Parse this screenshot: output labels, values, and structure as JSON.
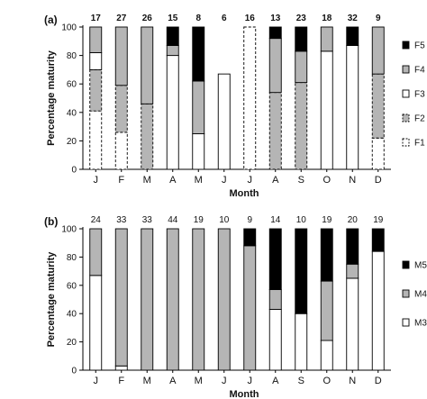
{
  "chart_data": [
    {
      "panel_label": "(a)",
      "type": "bar",
      "stacked": true,
      "categories": [
        "J",
        "F",
        "M",
        "A",
        "M",
        "J",
        "J",
        "A",
        "S",
        "O",
        "N",
        "D"
      ],
      "counts": [
        "17",
        "27",
        "26",
        "15",
        "8",
        "6",
        "16",
        "13",
        "23",
        "18",
        "32",
        "9"
      ],
      "ylabel": "Percentage maturity",
      "xlabel": "Month",
      "ylim": [
        0,
        100
      ],
      "yticks": [
        0,
        20,
        40,
        60,
        80,
        100
      ],
      "series": [
        {
          "name": "F1",
          "fill": "#ffffff",
          "dashed": true,
          "values": [
            41,
            26,
            0,
            0,
            0,
            0,
            100,
            0,
            0,
            0,
            0,
            22
          ]
        },
        {
          "name": "F2",
          "fill": "#b5b5b5",
          "dashed": true,
          "values": [
            29,
            33,
            46,
            0,
            0,
            0,
            0,
            54,
            61,
            0,
            0,
            45
          ]
        },
        {
          "name": "F3",
          "fill": "#ffffff",
          "dashed": false,
          "values": [
            12,
            0,
            0,
            80,
            25,
            67,
            0,
            0,
            0,
            83,
            87,
            0
          ]
        },
        {
          "name": "F4",
          "fill": "#b5b5b5",
          "dashed": false,
          "values": [
            18,
            41,
            54,
            7,
            37,
            0,
            0,
            38,
            22,
            17,
            0,
            33
          ]
        },
        {
          "name": "F5",
          "fill": "#000000",
          "dashed": false,
          "values": [
            0,
            0,
            0,
            13,
            38,
            0,
            0,
            8,
            17,
            0,
            13,
            0
          ]
        }
      ],
      "legend_position": "right"
    },
    {
      "panel_label": "(b)",
      "type": "bar",
      "stacked": true,
      "categories": [
        "J",
        "F",
        "M",
        "A",
        "M",
        "J",
        "J",
        "A",
        "S",
        "O",
        "N",
        "D"
      ],
      "counts": [
        "24",
        "33",
        "33",
        "44",
        "19",
        "10",
        "9",
        "14",
        "10",
        "19",
        "20",
        "19"
      ],
      "ylabel": "Percentage maturity",
      "xlabel": "Month",
      "ylim": [
        0,
        100
      ],
      "yticks": [
        0,
        20,
        40,
        60,
        80,
        100
      ],
      "series": [
        {
          "name": "M3",
          "fill": "#ffffff",
          "dashed": false,
          "values": [
            67,
            3,
            0,
            0,
            0,
            0,
            0,
            43,
            40,
            21,
            65,
            84
          ]
        },
        {
          "name": "M4",
          "fill": "#b5b5b5",
          "dashed": false,
          "values": [
            33,
            97,
            100,
            100,
            100,
            100,
            88,
            14,
            0,
            42,
            10,
            0
          ]
        },
        {
          "name": "M5",
          "fill": "#000000",
          "dashed": false,
          "values": [
            0,
            0,
            0,
            0,
            0,
            0,
            12,
            43,
            60,
            37,
            25,
            16
          ]
        }
      ],
      "legend_position": "right"
    }
  ]
}
